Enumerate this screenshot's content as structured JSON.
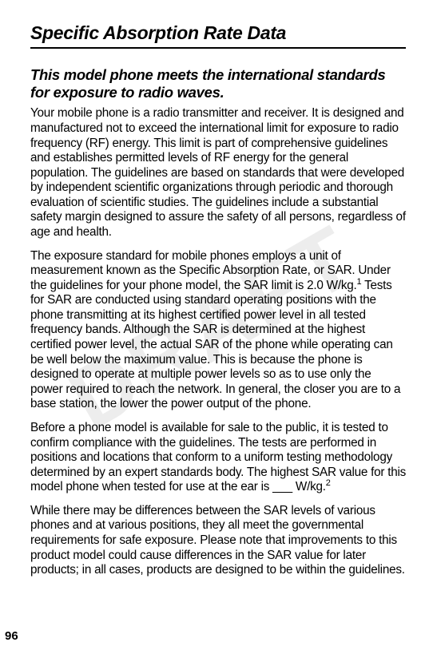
{
  "watermark": "DRAFT",
  "title": "Specific Absorption Rate Data",
  "subtitle": "This model phone meets the international standards for exposure to radio waves.",
  "para1": "Your mobile phone is a radio transmitter and receiver. It is designed and manufactured not to exceed the international limit for exposure to radio frequency (RF) energy. This limit is part of comprehensive guidelines and establishes permitted levels of RF energy for the general population. The guidelines are based on standards that were developed by independent scientific organizations through periodic and thorough evaluation of scientific studies. The guidelines include a substantial safety margin designed to assure the safety of all persons, regardless of age and health.",
  "para2_a": "The exposure standard for mobile phones employs a unit of measurement known as the Specific Absorption Rate, or SAR. Under the guidelines for your phone model, the SAR limit is 2.0 W/kg.",
  "para2_sup": "1",
  "para2_b": " Tests for SAR are conducted using standard operating positions with the phone transmitting at its highest certified power level in all tested frequency bands. Although the SAR is determined at the highest certified power level, the actual SAR of the phone while operating can be well below the maximum value. This is because the phone is designed to operate at multiple power levels so as to use only the power required to reach the network. In general, the closer you are to a base station, the lower the power output of the phone.",
  "para3_a": "Before a phone model is available for sale to the public, it is tested to confirm compliance with the guidelines. The tests are performed in positions and locations that conform to a uniform testing methodology determined by an expert standards body. The highest SAR value for this model phone when tested for use at the ear is ___ W/kg.",
  "para3_sup": "2",
  "para4": "While there may be differences between the SAR levels of various phones and at various positions, they all meet the governmental requirements for safe exposure. Please note that improvements to this product model could cause differences in the SAR value for later products; in all cases, products are designed to be within the guidelines.",
  "pagenum": "96"
}
